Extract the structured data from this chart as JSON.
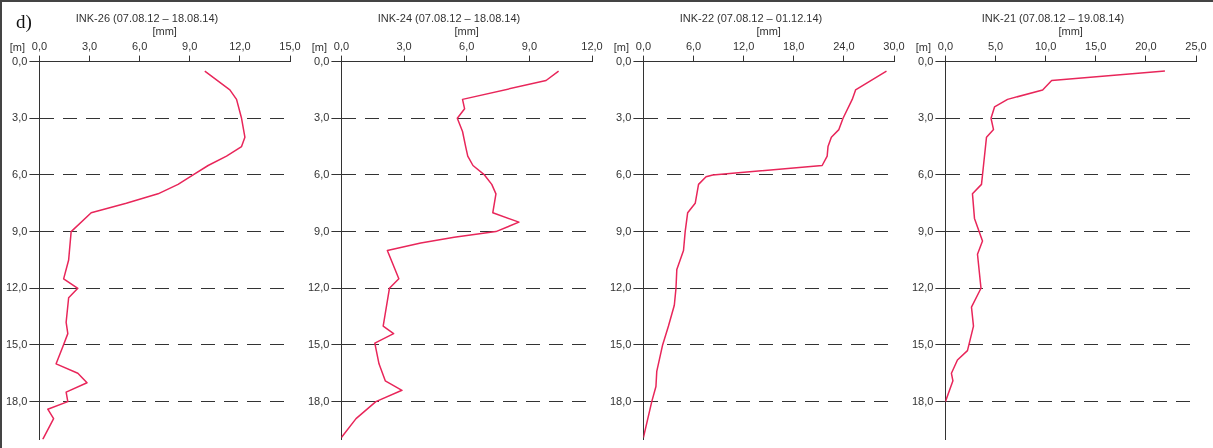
{
  "chart_data": [
    {
      "type": "line",
      "title": "INK-26 (07.08.12 – 18.08.14)",
      "xlabel": "[mm]",
      "ylabel": "[m]",
      "annotations": [
        "d)"
      ],
      "marker": "none",
      "grid": "y",
      "xlim": [
        0,
        15
      ],
      "xticks": [
        {
          "value": 0,
          "label": "0,0"
        },
        {
          "value": 3,
          "label": "3,0"
        },
        {
          "value": 6,
          "label": "6,0"
        },
        {
          "value": 9,
          "label": "9,0"
        },
        {
          "value": 12,
          "label": "12,0"
        },
        {
          "value": 15,
          "label": "15,0"
        }
      ],
      "ylim": [
        20,
        0
      ],
      "yticks": [
        {
          "value": 0,
          "label": "0,0"
        },
        {
          "value": 3,
          "label": "3,0"
        },
        {
          "value": 6,
          "label": "6,0"
        },
        {
          "value": 9,
          "label": "9,0"
        },
        {
          "value": 12,
          "label": "12,0"
        },
        {
          "value": 15,
          "label": "15,0"
        },
        {
          "value": 18,
          "label": "18,0"
        }
      ],
      "series": [
        {
          "color": "#e8265a",
          "x": [
            9.9,
            11.4,
            11.8,
            12.1,
            12.3,
            12.1,
            11.2,
            10.1,
            9.2,
            8.3,
            7.1,
            5.2,
            3.1,
            1.9,
            1.75,
            1.45,
            2.3,
            1.75,
            1.6,
            1.7,
            1.4,
            1.0,
            2.3,
            2.85,
            1.6,
            1.7,
            0.5,
            0.85,
            0.2
          ],
          "values": [
            0.5,
            1.5,
            2.0,
            3.0,
            4.0,
            4.5,
            5.0,
            5.5,
            6.0,
            6.5,
            7.0,
            7.5,
            8.0,
            9.0,
            10.5,
            11.5,
            12.0,
            12.5,
            13.8,
            14.4,
            15.1,
            16.0,
            16.5,
            17.0,
            17.5,
            18.0,
            18.4,
            18.9,
            20.0
          ]
        }
      ]
    },
    {
      "type": "line",
      "title": "INK-24 (07.08.12 – 18.08.14)",
      "xlabel": "[mm]",
      "ylabel": "[m]",
      "marker": "none",
      "grid": "y",
      "xlim": [
        0,
        12
      ],
      "xticks": [
        {
          "value": 0,
          "label": "0,0"
        },
        {
          "value": 3,
          "label": "3,0"
        },
        {
          "value": 6,
          "label": "6,0"
        },
        {
          "value": 9,
          "label": "9,0"
        },
        {
          "value": 12,
          "label": "12,0"
        }
      ],
      "ylim": [
        20,
        0
      ],
      "yticks": [
        {
          "value": 0,
          "label": "0,0"
        },
        {
          "value": 3,
          "label": "3,0"
        },
        {
          "value": 6,
          "label": "6,0"
        },
        {
          "value": 9,
          "label": "9,0"
        },
        {
          "value": 12,
          "label": "12,0"
        },
        {
          "value": 15,
          "label": "15,0"
        },
        {
          "value": 18,
          "label": "18,0"
        }
      ],
      "series": [
        {
          "color": "#e8265a",
          "x": [
            10.4,
            9.8,
            5.8,
            5.9,
            5.55,
            5.8,
            5.95,
            6.05,
            6.3,
            6.85,
            7.2,
            7.4,
            7.25,
            8.5,
            7.4,
            5.4,
            3.8,
            2.2,
            2.75,
            2.3,
            2.0,
            2.5,
            1.6,
            1.8,
            2.1,
            2.9,
            1.65,
            0.7,
            0.0
          ],
          "values": [
            0.5,
            1.0,
            2.0,
            2.5,
            3.0,
            3.7,
            4.5,
            5.0,
            5.5,
            6.0,
            6.5,
            7.0,
            8.0,
            8.5,
            9.0,
            9.3,
            9.6,
            10.0,
            11.5,
            12.0,
            14.0,
            14.4,
            14.9,
            16.0,
            16.9,
            17.4,
            18.0,
            18.9,
            19.9
          ]
        }
      ]
    },
    {
      "type": "line",
      "title": "INK-22 (07.08.12 – 01.12.14)",
      "xlabel": "[mm]",
      "ylabel": "[m]",
      "marker": "none",
      "grid": "y",
      "xlim": [
        0,
        30
      ],
      "xticks": [
        {
          "value": 0,
          "label": "0,0"
        },
        {
          "value": 6,
          "label": "6,0"
        },
        {
          "value": 12,
          "label": "12,0"
        },
        {
          "value": 18,
          "label": "18,0"
        },
        {
          "value": 24,
          "label": "24,0"
        },
        {
          "value": 30,
          "label": "30,0"
        }
      ],
      "ylim": [
        20,
        0
      ],
      "yticks": [
        {
          "value": 0,
          "label": "0,0"
        },
        {
          "value": 3,
          "label": "3,0"
        },
        {
          "value": 6,
          "label": "6,0"
        },
        {
          "value": 9,
          "label": "9,0"
        },
        {
          "value": 12,
          "label": "12,0"
        },
        {
          "value": 15,
          "label": "15,0"
        },
        {
          "value": 18,
          "label": "18,0"
        }
      ],
      "series": [
        {
          "color": "#e8265a",
          "x": [
            29.1,
            25.4,
            25.0,
            23.9,
            23.4,
            22.5,
            22.1,
            22.0,
            21.4,
            8.3,
            7.5,
            6.6,
            6.2,
            5.3,
            5.0,
            4.8,
            4.0,
            3.9,
            3.7,
            3.0,
            2.3,
            1.6,
            1.5,
            1.0,
            0.0
          ],
          "values": [
            0.5,
            1.5,
            2.0,
            3.0,
            3.6,
            4.0,
            4.5,
            5.0,
            5.5,
            6.0,
            6.1,
            6.5,
            7.5,
            8.0,
            9.0,
            10.0,
            11.0,
            12.0,
            12.9,
            14.0,
            15.0,
            16.4,
            17.2,
            18.0,
            19.9
          ]
        }
      ]
    },
    {
      "type": "line",
      "title": "INK-21 (07.08.12 – 19.08.14)",
      "xlabel": "[mm]",
      "ylabel": "[m]",
      "marker": "none",
      "grid": "y",
      "xlim": [
        0,
        25
      ],
      "xticks": [
        {
          "value": 0,
          "label": "0,0"
        },
        {
          "value": 5,
          "label": "5,0"
        },
        {
          "value": 10,
          "label": "10,0"
        },
        {
          "value": 15,
          "label": "15,0"
        },
        {
          "value": 20,
          "label": "20,0"
        },
        {
          "value": 25,
          "label": "25,0"
        }
      ],
      "ylim": [
        20,
        0
      ],
      "yticks": [
        {
          "value": 0,
          "label": "0,0"
        },
        {
          "value": 3,
          "label": "3,0"
        },
        {
          "value": 6,
          "label": "6,0"
        },
        {
          "value": 9,
          "label": "9,0"
        },
        {
          "value": 12,
          "label": "12,0"
        },
        {
          "value": 15,
          "label": "15,0"
        },
        {
          "value": 18,
          "label": "18,0"
        }
      ],
      "series": [
        {
          "color": "#e8265a",
          "x": [
            21.9,
            10.6,
            9.7,
            6.2,
            4.9,
            4.55,
            4.8,
            4.1,
            3.8,
            3.7,
            3.6,
            2.7,
            2.9,
            3.7,
            3.2,
            3.55,
            2.6,
            2.8,
            2.2,
            1.2,
            0.6,
            0.75,
            0.0
          ],
          "values": [
            0.5,
            1.0,
            1.5,
            2.0,
            2.4,
            3.0,
            3.6,
            4.0,
            5.5,
            6.0,
            6.5,
            7.0,
            8.3,
            9.5,
            10.2,
            12.0,
            13.0,
            14.0,
            15.3,
            15.8,
            16.5,
            16.9,
            18.0
          ]
        }
      ]
    }
  ]
}
